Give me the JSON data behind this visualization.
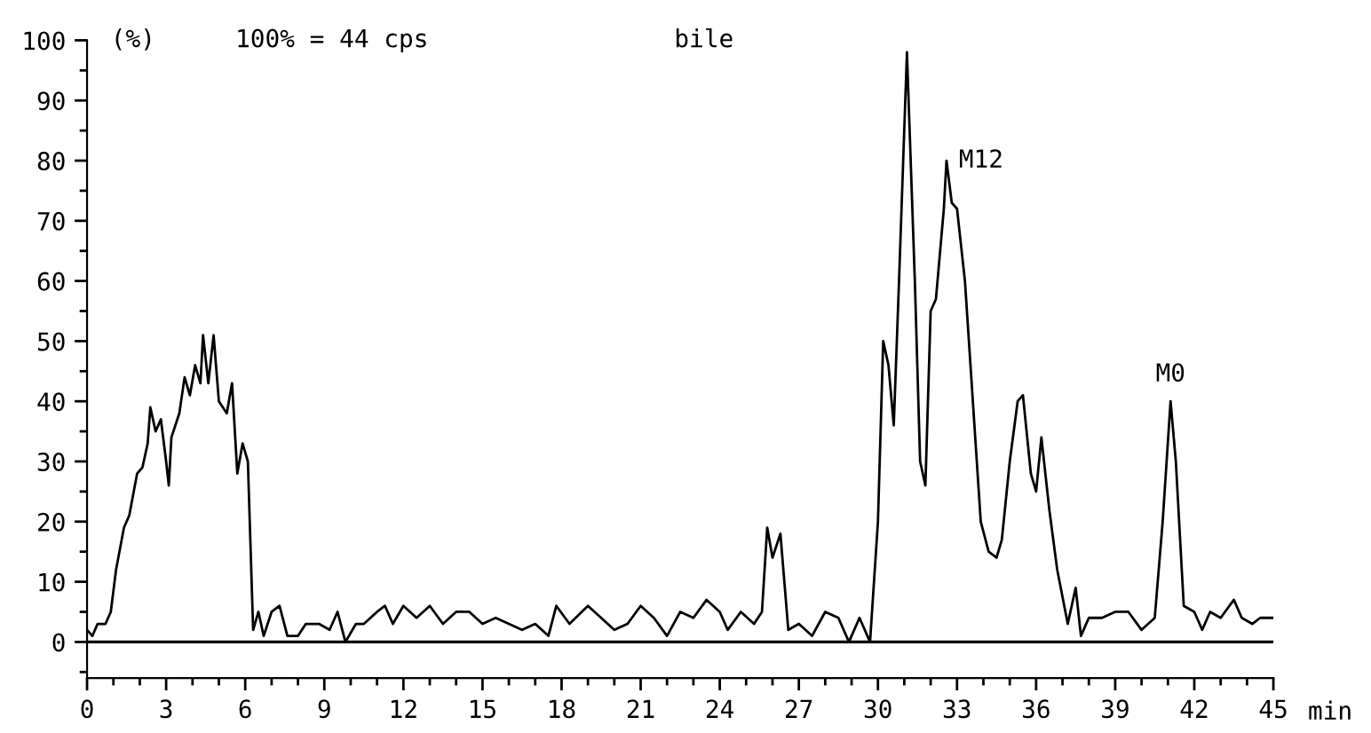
{
  "chart_data": {
    "type": "line",
    "title": "bile",
    "ylabel": "(%)",
    "xlabel": "min",
    "annotations": [
      "100% = 44 cps",
      {
        "text": "M12",
        "x": 32.6,
        "y": 80
      },
      {
        "text": "M0",
        "x": 41.1,
        "y": 40
      }
    ],
    "series": [
      {
        "color": "#000000",
        "x": [
          0,
          0.2,
          0.4,
          0.7,
          0.9,
          1.1,
          1.4,
          1.6,
          1.9,
          2.1,
          2.3,
          2.4,
          2.6,
          2.8,
          3.0,
          3.1,
          3.2,
          3.5,
          3.7,
          3.9,
          4.1,
          4.3,
          4.4,
          4.6,
          4.8,
          5.0,
          5.3,
          5.5,
          5.7,
          5.9,
          6.1,
          6.3,
          6.5,
          6.7,
          7.0,
          7.3,
          7.6,
          8.0,
          8.3,
          8.8,
          9.2,
          9.5,
          9.8,
          10.2,
          10.5,
          11.0,
          11.3,
          11.6,
          12.0,
          12.5,
          13.0,
          13.5,
          14.0,
          14.5,
          15.0,
          15.5,
          16.0,
          16.5,
          17.0,
          17.5,
          17.8,
          18.3,
          19.0,
          19.5,
          20.0,
          20.5,
          21.0,
          21.5,
          22.0,
          22.5,
          23.0,
          23.5,
          24.0,
          24.3,
          24.8,
          25.3,
          25.6,
          25.8,
          26.0,
          26.3,
          26.6,
          27.0,
          27.5,
          28.0,
          28.5,
          28.9,
          29.3,
          29.7,
          30.0,
          30.2,
          30.4,
          30.6,
          30.8,
          31.1,
          31.4,
          31.6,
          31.8,
          32.0,
          32.2,
          32.5,
          32.6,
          32.8,
          33.0,
          33.3,
          33.6,
          33.9,
          34.2,
          34.5,
          34.7,
          35.0,
          35.3,
          35.5,
          35.8,
          36.0,
          36.2,
          36.5,
          36.8,
          37.2,
          37.5,
          37.7,
          38.0,
          38.5,
          39.0,
          39.5,
          40.0,
          40.5,
          40.8,
          41.1,
          41.3,
          41.6,
          42.0,
          42.3,
          42.6,
          43.0,
          43.5,
          43.8,
          44.2,
          44.5,
          45
        ],
        "values": [
          2,
          1,
          3,
          3,
          5,
          12,
          19,
          21,
          28,
          29,
          33,
          39,
          35,
          37,
          30,
          26,
          34,
          38,
          44,
          41,
          46,
          43,
          51,
          43,
          51,
          40,
          38,
          43,
          28,
          33,
          30,
          2,
          5,
          1,
          5,
          6,
          1,
          1,
          3,
          3,
          2,
          5,
          0,
          3,
          3,
          5,
          6,
          3,
          6,
          4,
          6,
          3,
          5,
          5,
          3,
          4,
          3,
          2,
          3,
          1,
          6,
          3,
          6,
          4,
          2,
          3,
          6,
          4,
          1,
          5,
          4,
          7,
          5,
          2,
          5,
          3,
          5,
          19,
          14,
          18,
          2,
          3,
          1,
          5,
          4,
          0,
          4,
          0,
          20,
          50,
          46,
          36,
          60,
          98,
          60,
          30,
          26,
          55,
          57,
          72,
          80,
          73,
          72,
          60,
          40,
          20,
          15,
          14,
          17,
          30,
          40,
          41,
          28,
          25,
          34,
          22,
          12,
          3,
          9,
          1,
          4,
          4,
          5,
          5,
          2,
          4,
          20,
          40,
          30,
          6,
          5,
          2,
          5,
          4,
          7,
          4,
          3,
          4,
          4
        ]
      }
    ],
    "xlim": [
      0,
      45
    ],
    "xticks": [
      0,
      3,
      6,
      9,
      12,
      15,
      18,
      21,
      24,
      27,
      30,
      33,
      36,
      39,
      42,
      45
    ],
    "ylim": [
      -6,
      100
    ],
    "yticks": [
      0,
      10,
      20,
      30,
      40,
      50,
      60,
      70,
      80,
      90,
      100
    ],
    "ref_lines": [
      {
        "axis": "y",
        "value": 0,
        "color": "#000000"
      }
    ],
    "grid": false,
    "legend": false
  }
}
